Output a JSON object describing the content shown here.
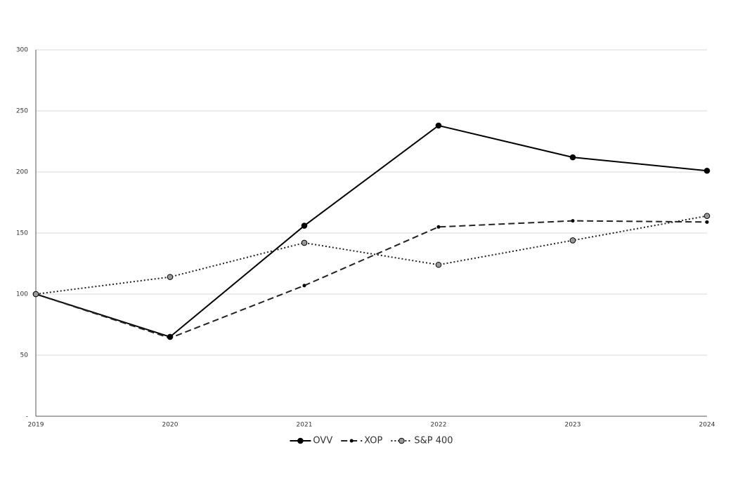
{
  "chart_data": {
    "type": "line",
    "categories": [
      "2019",
      "2020",
      "2021",
      "2022",
      "2023",
      "2024"
    ],
    "series": [
      {
        "name": "OVV",
        "color": "#000000",
        "dash": "solid",
        "marker": "large",
        "marker_color": "#000000",
        "values": [
          100,
          65,
          156,
          238,
          212,
          201
        ]
      },
      {
        "name": "XOP",
        "color": "#222222",
        "dash": "dashed",
        "marker": "small",
        "marker_color": "#000000",
        "values": [
          100,
          64,
          107,
          155,
          160,
          159
        ]
      },
      {
        "name": "S&P 400",
        "color": "#222222",
        "dash": "dotted",
        "marker": "large",
        "marker_color": "#999999",
        "values": [
          100,
          114,
          142,
          124,
          144,
          164
        ]
      }
    ],
    "ylim": [
      0,
      300
    ],
    "yticks": [
      {
        "value": 0,
        "label": "-"
      },
      50,
      100,
      150,
      200,
      250,
      300
    ],
    "grid": true,
    "legend": "bottom"
  }
}
